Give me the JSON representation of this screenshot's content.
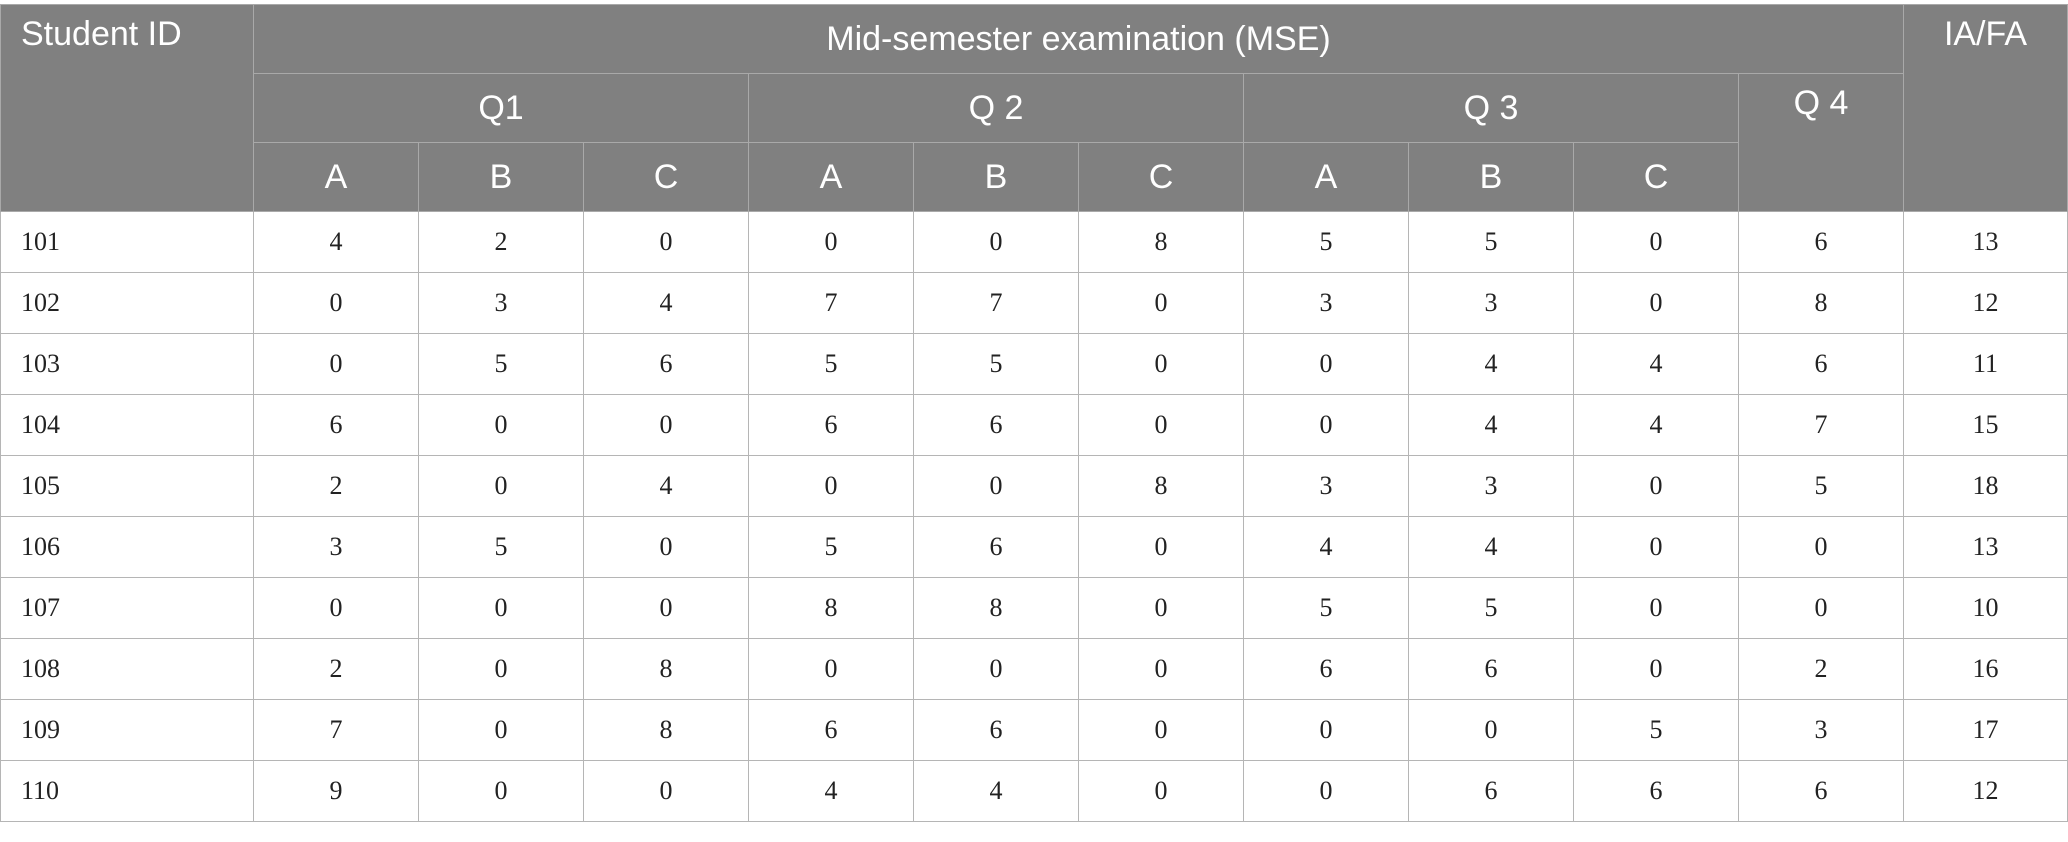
{
  "header": {
    "student_id": "Student ID",
    "mse": "Mid-semester examination (MSE)",
    "iafa": "IA/FA",
    "questions": [
      "Q1",
      "Q 2",
      "Q 3",
      "Q 4"
    ],
    "parts": [
      "A",
      "B",
      "C"
    ]
  },
  "rows": [
    {
      "id": "101",
      "scores": [
        "4",
        "2",
        "0",
        "0",
        "0",
        "8",
        "5",
        "5",
        "0",
        "6",
        "13"
      ]
    },
    {
      "id": "102",
      "scores": [
        "0",
        "3",
        "4",
        "7",
        "7",
        "0",
        "3",
        "3",
        "0",
        "8",
        "12"
      ]
    },
    {
      "id": "103",
      "scores": [
        "0",
        "5",
        "6",
        "5",
        "5",
        "0",
        "0",
        "4",
        "4",
        "6",
        "11"
      ]
    },
    {
      "id": "104",
      "scores": [
        "6",
        "0",
        "0",
        "6",
        "6",
        "0",
        "0",
        "4",
        "4",
        "7",
        "15"
      ]
    },
    {
      "id": "105",
      "scores": [
        "2",
        "0",
        "4",
        "0",
        "0",
        "8",
        "3",
        "3",
        "0",
        "5",
        "18"
      ]
    },
    {
      "id": "106",
      "scores": [
        "3",
        "5",
        "0",
        "5",
        "6",
        "0",
        "4",
        "4",
        "0",
        "0",
        "13"
      ]
    },
    {
      "id": "107",
      "scores": [
        "0",
        "0",
        "0",
        "8",
        "8",
        "0",
        "5",
        "5",
        "0",
        "0",
        "10"
      ]
    },
    {
      "id": "108",
      "scores": [
        "2",
        "0",
        "8",
        "0",
        "0",
        "0",
        "6",
        "6",
        "0",
        "2",
        "16"
      ]
    },
    {
      "id": "109",
      "scores": [
        "7",
        "0",
        "8",
        "6",
        "6",
        "0",
        "0",
        "0",
        "5",
        "3",
        "17"
      ]
    },
    {
      "id": "110",
      "scores": [
        "9",
        "0",
        "0",
        "4",
        "4",
        "0",
        "0",
        "6",
        "6",
        "6",
        "12"
      ]
    }
  ]
}
